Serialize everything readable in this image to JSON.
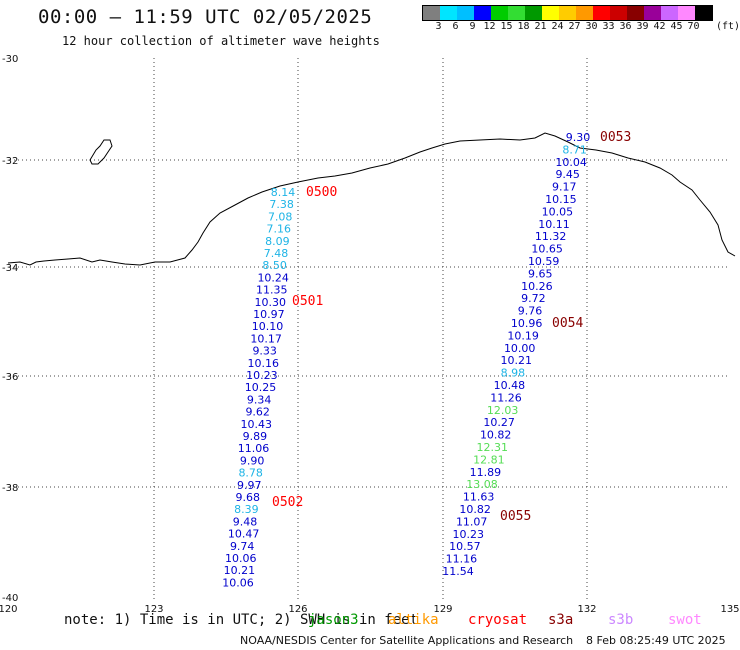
{
  "header": {
    "title": "00:00 — 11:59 UTC 02/05/2025",
    "subtitle": "12 hour collection of altimeter wave heights"
  },
  "legend": {
    "colors": [
      "#7f7f7f",
      "#00e5ff",
      "#00bfff",
      "#0000ff",
      "#00cc00",
      "#33dd33",
      "#009900",
      "#ffff00",
      "#ffcc00",
      "#ff9900",
      "#ff0000",
      "#cc0000",
      "#880000",
      "#990099",
      "#cc66ff",
      "#ff88ff",
      "#000000"
    ],
    "labels": [
      "3",
      "6",
      "9",
      "12",
      "15",
      "18",
      "21",
      "24",
      "27",
      "30",
      "33",
      "36",
      "39",
      "42",
      "45",
      "70"
    ],
    "unit": "(ft)"
  },
  "axes": {
    "lat_labels": [
      "-30",
      "-32",
      "-34",
      "-36",
      "-38",
      "-40"
    ],
    "lon_labels": [
      "120",
      "123",
      "126",
      "129",
      "132",
      "135"
    ]
  },
  "tracks": [
    {
      "passes": [
        {
          "label": "0500",
          "color": "#ff0000"
        },
        {
          "label": "0501",
          "color": "#ff0000"
        },
        {
          "label": "0502",
          "color": "#ff0000"
        }
      ],
      "values": [
        {
          "v": "8.14",
          "c": "#1eb4e6"
        },
        {
          "v": "7.38",
          "c": "#1eb4e6"
        },
        {
          "v": "7.08",
          "c": "#1eb4e6"
        },
        {
          "v": "7.16",
          "c": "#1eb4e6"
        },
        {
          "v": "8.09",
          "c": "#1eb4e6"
        },
        {
          "v": "7.48",
          "c": "#1eb4e6"
        },
        {
          "v": "8.50",
          "c": "#1eb4e6"
        },
        {
          "v": "10.24",
          "c": "#0000cc"
        },
        {
          "v": "11.35",
          "c": "#0000cc"
        },
        {
          "v": "10.30",
          "c": "#0000cc"
        },
        {
          "v": "10.97",
          "c": "#0000cc"
        },
        {
          "v": "10.10",
          "c": "#0000cc"
        },
        {
          "v": "10.17",
          "c": "#0000cc"
        },
        {
          "v": "9.33",
          "c": "#0000cc"
        },
        {
          "v": "10.16",
          "c": "#0000cc"
        },
        {
          "v": "10.23",
          "c": "#0000cc"
        },
        {
          "v": "10.25",
          "c": "#0000cc"
        },
        {
          "v": "9.34",
          "c": "#0000cc"
        },
        {
          "v": "9.62",
          "c": "#0000cc"
        },
        {
          "v": "10.43",
          "c": "#0000cc"
        },
        {
          "v": "9.89",
          "c": "#0000cc"
        },
        {
          "v": "11.06",
          "c": "#0000cc"
        },
        {
          "v": "9.90",
          "c": "#0000cc"
        },
        {
          "v": "8.78",
          "c": "#1eb4e6"
        },
        {
          "v": "9.97",
          "c": "#0000cc"
        },
        {
          "v": "9.68",
          "c": "#0000cc"
        },
        {
          "v": "8.39",
          "c": "#1eb4e6"
        },
        {
          "v": "9.48",
          "c": "#0000cc"
        },
        {
          "v": "10.47",
          "c": "#0000cc"
        },
        {
          "v": "9.74",
          "c": "#0000cc"
        },
        {
          "v": "10.06",
          "c": "#0000cc"
        },
        {
          "v": "10.21",
          "c": "#0000cc"
        },
        {
          "v": "10.06",
          "c": "#0000cc"
        }
      ]
    },
    {
      "passes": [
        {
          "label": "0053",
          "color": "#880000"
        },
        {
          "label": "0054",
          "color": "#880000"
        },
        {
          "label": "0055",
          "color": "#880000"
        }
      ],
      "values": [
        {
          "v": "9.30",
          "c": "#0000cc"
        },
        {
          "v": "8.71",
          "c": "#1eb4e6"
        },
        {
          "v": "10.04",
          "c": "#0000cc"
        },
        {
          "v": "9.45",
          "c": "#0000cc"
        },
        {
          "v": "9.17",
          "c": "#0000cc"
        },
        {
          "v": "10.15",
          "c": "#0000cc"
        },
        {
          "v": "10.05",
          "c": "#0000cc"
        },
        {
          "v": "10.11",
          "c": "#0000cc"
        },
        {
          "v": "11.32",
          "c": "#0000cc"
        },
        {
          "v": "10.65",
          "c": "#0000cc"
        },
        {
          "v": "10.59",
          "c": "#0000cc"
        },
        {
          "v": "9.65",
          "c": "#0000cc"
        },
        {
          "v": "10.26",
          "c": "#0000cc"
        },
        {
          "v": "9.72",
          "c": "#0000cc"
        },
        {
          "v": "9.76",
          "c": "#0000cc"
        },
        {
          "v": "10.96",
          "c": "#0000cc"
        },
        {
          "v": "10.19",
          "c": "#0000cc"
        },
        {
          "v": "10.00",
          "c": "#0000cc"
        },
        {
          "v": "10.21",
          "c": "#0000cc"
        },
        {
          "v": "8.98",
          "c": "#1eb4e6"
        },
        {
          "v": "10.48",
          "c": "#0000cc"
        },
        {
          "v": "11.26",
          "c": "#0000cc"
        },
        {
          "v": "12.03",
          "c": "#55dd55"
        },
        {
          "v": "10.27",
          "c": "#0000cc"
        },
        {
          "v": "10.82",
          "c": "#0000cc"
        },
        {
          "v": "12.31",
          "c": "#55dd55"
        },
        {
          "v": "12.81",
          "c": "#55dd55"
        },
        {
          "v": "11.89",
          "c": "#0000cc"
        },
        {
          "v": "13.08",
          "c": "#55dd55"
        },
        {
          "v": "11.63",
          "c": "#0000cc"
        },
        {
          "v": "10.82",
          "c": "#0000cc"
        },
        {
          "v": "11.07",
          "c": "#0000cc"
        },
        {
          "v": "10.23",
          "c": "#0000cc"
        },
        {
          "v": "10.57",
          "c": "#0000cc"
        },
        {
          "v": "11.16",
          "c": "#0000cc"
        },
        {
          "v": "11.54",
          "c": "#0000cc"
        }
      ]
    }
  ],
  "footer": {
    "note": "note: 1) Time is in UTC; 2) SWH is in feet",
    "satellites": [
      {
        "name": "jason3",
        "color": "#009900"
      },
      {
        "name": "altika",
        "color": "#ff9900"
      },
      {
        "name": "cryosat",
        "color": "#ff0000"
      },
      {
        "name": "s3a",
        "color": "#880000"
      },
      {
        "name": "s3b",
        "color": "#cc88ff"
      },
      {
        "name": "swot",
        "color": "#ff88ff"
      }
    ],
    "credit": "NOAA/NESDIS Center for Satellite Applications and Research",
    "timestamp": "8 Feb 08:25:49 UTC 2025"
  }
}
